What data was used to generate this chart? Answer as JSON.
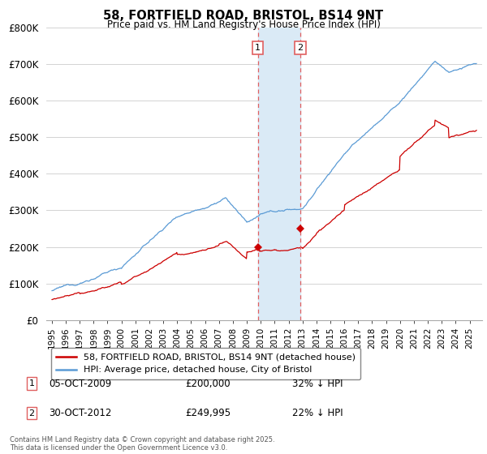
{
  "title": "58, FORTFIELD ROAD, BRISTOL, BS14 9NT",
  "subtitle": "Price paid vs. HM Land Registry's House Price Index (HPI)",
  "ylim": [
    0,
    800000
  ],
  "yticks": [
    0,
    100000,
    200000,
    300000,
    400000,
    500000,
    600000,
    700000,
    800000
  ],
  "ytick_labels": [
    "£0",
    "£100K",
    "£200K",
    "£300K",
    "£400K",
    "£500K",
    "£600K",
    "£700K",
    "£800K"
  ],
  "hpi_color": "#5b9bd5",
  "price_color": "#cc0000",
  "sale1_x": 2009.79,
  "sale1_y": 200000,
  "sale2_x": 2012.83,
  "sale2_y": 249995,
  "sale1_date": "05-OCT-2009",
  "sale1_price": "£200,000",
  "sale1_pct": "32% ↓ HPI",
  "sale2_date": "30-OCT-2012",
  "sale2_price": "£249,995",
  "sale2_pct": "22% ↓ HPI",
  "legend_label1": "58, FORTFIELD ROAD, BRISTOL, BS14 9NT (detached house)",
  "legend_label2": "HPI: Average price, detached house, City of Bristol",
  "footnote": "Contains HM Land Registry data © Crown copyright and database right 2025.\nThis data is licensed under the Open Government Licence v3.0.",
  "band_color": "#daeaf6",
  "dashed_color": "#e06060",
  "xmin": 1994.6,
  "xmax": 2025.9
}
